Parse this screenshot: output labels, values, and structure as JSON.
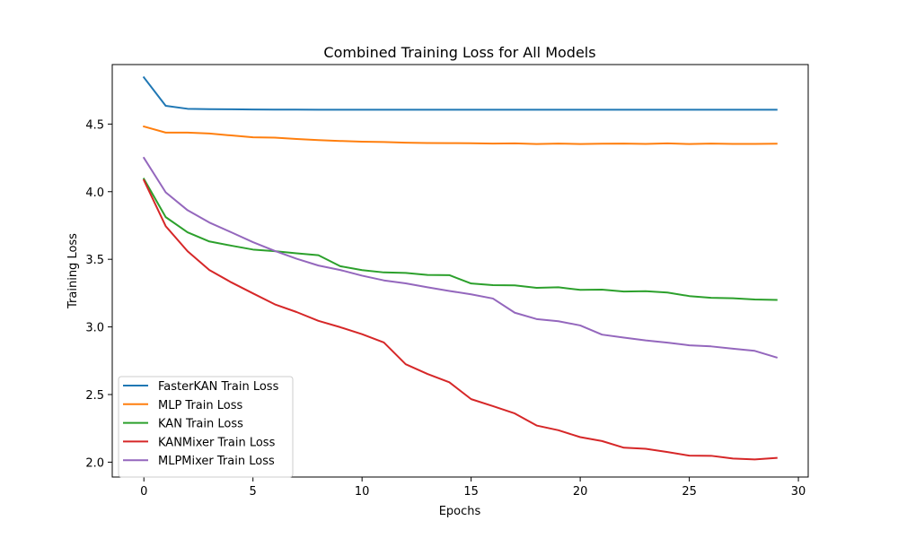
{
  "chart_data": {
    "type": "line",
    "title": "Combined Training Loss for All Models",
    "xlabel": "Epochs",
    "ylabel": "Training Loss",
    "xlim": [
      -1.45,
      30.45
    ],
    "ylim": [
      1.89,
      4.94
    ],
    "xticks": [
      0,
      5,
      10,
      15,
      20,
      25,
      30
    ],
    "yticks": [
      2.0,
      2.5,
      3.0,
      3.5,
      4.0,
      4.5
    ],
    "grid": false,
    "legend_position": "lower-left",
    "x": [
      0,
      1,
      2,
      3,
      4,
      5,
      6,
      7,
      8,
      9,
      10,
      11,
      12,
      13,
      14,
      15,
      16,
      17,
      18,
      19,
      20,
      21,
      22,
      23,
      24,
      25,
      26,
      27,
      28,
      29
    ],
    "series": [
      {
        "name": "FasterKAN Train Loss",
        "color": "#1f77b4",
        "values": [
          4.845,
          4.635,
          4.613,
          4.61,
          4.609,
          4.608,
          4.607,
          4.607,
          4.606,
          4.606,
          4.606,
          4.606,
          4.606,
          4.606,
          4.606,
          4.606,
          4.606,
          4.606,
          4.606,
          4.606,
          4.606,
          4.606,
          4.606,
          4.606,
          4.606,
          4.606,
          4.606,
          4.606,
          4.606,
          4.606
        ]
      },
      {
        "name": "MLP Train Loss",
        "color": "#ff7f0e",
        "values": [
          4.482,
          4.437,
          4.437,
          4.43,
          4.416,
          4.402,
          4.4,
          4.39,
          4.381,
          4.375,
          4.37,
          4.367,
          4.362,
          4.36,
          4.359,
          4.358,
          4.356,
          4.357,
          4.352,
          4.356,
          4.352,
          4.355,
          4.356,
          4.353,
          4.357,
          4.352,
          4.356,
          4.353,
          4.353,
          4.355
        ]
      },
      {
        "name": "KAN Train Loss",
        "color": "#2ca02c",
        "values": [
          4.095,
          3.812,
          3.7,
          3.632,
          3.601,
          3.572,
          3.56,
          3.544,
          3.53,
          3.449,
          3.42,
          3.403,
          3.399,
          3.384,
          3.383,
          3.321,
          3.309,
          3.307,
          3.289,
          3.293,
          3.274,
          3.276,
          3.262,
          3.264,
          3.254,
          3.228,
          3.215,
          3.212,
          3.203,
          3.2
        ]
      },
      {
        "name": "KANMixer Train Loss",
        "color": "#d62728",
        "values": [
          4.085,
          3.745,
          3.56,
          3.421,
          3.33,
          3.248,
          3.167,
          3.11,
          3.045,
          2.998,
          2.946,
          2.885,
          2.724,
          2.652,
          2.591,
          2.466,
          2.414,
          2.36,
          2.271,
          2.236,
          2.185,
          2.156,
          2.107,
          2.099,
          2.075,
          2.048,
          2.047,
          2.027,
          2.02,
          2.031
        ]
      },
      {
        "name": "MLPMixer Train Loss",
        "color": "#9467bd",
        "values": [
          4.25,
          3.995,
          3.863,
          3.772,
          3.7,
          3.627,
          3.562,
          3.504,
          3.454,
          3.421,
          3.379,
          3.344,
          3.322,
          3.293,
          3.266,
          3.241,
          3.21,
          3.105,
          3.058,
          3.042,
          3.011,
          2.943,
          2.921,
          2.9,
          2.884,
          2.864,
          2.856,
          2.839,
          2.823,
          2.774
        ]
      }
    ]
  }
}
